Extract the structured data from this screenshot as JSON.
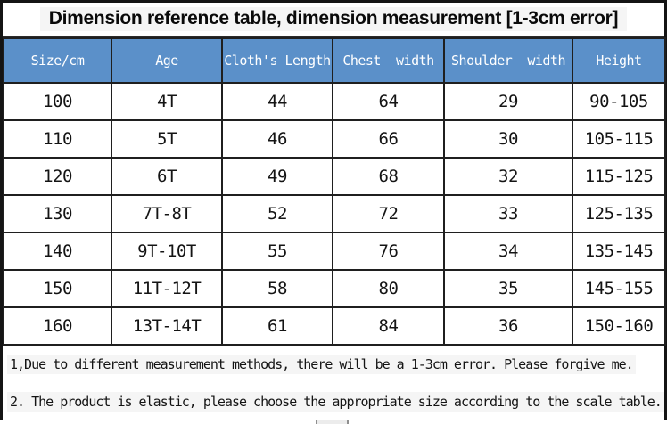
{
  "title": "Dimension reference table, dimension measurement [1-3cm error]",
  "table": {
    "columns": [
      "Size/cm",
      "Age",
      "Cloth's Length",
      "Chest  width",
      "Shoulder  width",
      "Height"
    ],
    "rows": [
      [
        "100",
        "4T",
        "44",
        "64",
        "29",
        "90-105"
      ],
      [
        "110",
        "5T",
        "46",
        "66",
        "30",
        "105-115"
      ],
      [
        "120",
        "6T",
        "49",
        "68",
        "32",
        "115-125"
      ],
      [
        "130",
        "7T-8T",
        "52",
        "72",
        "33",
        "125-135"
      ],
      [
        "140",
        "9T-10T",
        "55",
        "76",
        "34",
        "135-145"
      ],
      [
        "150",
        "11T-12T",
        "58",
        "80",
        "35",
        "145-155"
      ],
      [
        "160",
        "13T-14T",
        "61",
        "84",
        "36",
        "150-160"
      ]
    ]
  },
  "notes": [
    "1,Due to different measurement methods, there will be a 1-3cm error. Please forgive me.",
    "2. The product is elastic, please choose the appropriate size according to the scale table."
  ],
  "colors": {
    "header_bg": "#5B90C9",
    "header_text": "#FFFFFF",
    "border": "#1F1F1F",
    "highlight": "#F5F5F5"
  }
}
